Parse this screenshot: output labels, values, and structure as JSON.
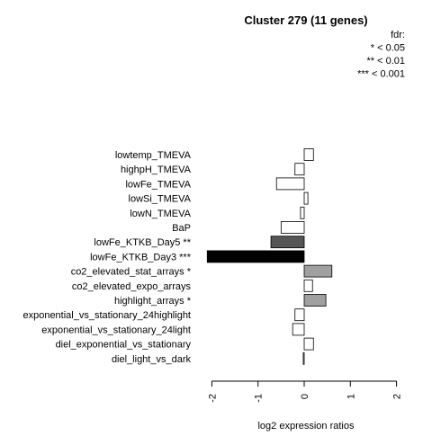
{
  "chart_data": {
    "type": "bar",
    "orientation": "horizontal",
    "title": "Cluster 279 (11 genes)",
    "xlabel": "log2 expression ratios",
    "ylabel": "",
    "xlim": [
      -2,
      2
    ],
    "xticks": [
      "-2",
      "-1",
      "0",
      "1",
      "2"
    ],
    "grid": false,
    "legend": {
      "placement": "top-right",
      "lines": [
        "fdr:",
        "* < 0.05",
        "** < 0.01",
        "*** < 0.001"
      ]
    },
    "categories": [
      "lowtemp_TMEVA",
      "highpH_TMEVA",
      "lowFe_TMEVA",
      "lowSi_TMEVA",
      "lowN_TMEVA",
      "BaP",
      "lowFe_KTKB_Day5 **",
      "lowFe_KTKB_Day3 ***",
      "co2_elevated_stat_arrays *",
      "co2_elevated_expo_arrays",
      "highlight_arrays *",
      "exponential_vs_stationary_24highlight",
      "exponential_vs_stationary_24light",
      "diel_exponential_vs_stationary",
      "diel_light_vs_dark"
    ],
    "values": [
      0.2,
      -0.2,
      -0.6,
      0.08,
      -0.08,
      -0.5,
      -0.72,
      -2.1,
      0.6,
      0.18,
      0.47,
      -0.2,
      -0.25,
      0.2,
      -0.02
    ],
    "colors": [
      "#ffffff",
      "#ffffff",
      "#ffffff",
      "#ffffff",
      "#ffffff",
      "#ffffff",
      "#555555",
      "#000000",
      "#a0a0a0",
      "#ffffff",
      "#a0a0a0",
      "#ffffff",
      "#ffffff",
      "#ffffff",
      "#ffffff"
    ]
  }
}
